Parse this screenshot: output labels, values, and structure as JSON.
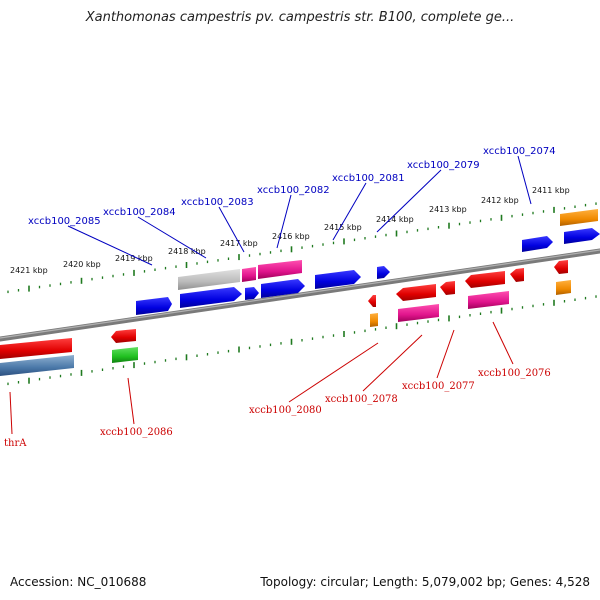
{
  "title": "Xanthomonas campestris pv. campestris str. B100, complete ge...",
  "footer": {
    "accession": "Accession: NC_010688",
    "summary": "Topology: circular; Length: 5,079,002 bp; Genes: 4,528"
  },
  "colors": {
    "forward_label": "#0000c0",
    "reverse_label": "#cc0000",
    "tick": "#1f7a1f",
    "backbone": "#888888"
  },
  "scale_labels": [
    "2421 kbp",
    "2420 kbp",
    "2419 kbp",
    "2418 kbp",
    "2417 kbp",
    "2416 kbp",
    "2415 kbp",
    "2414 kbp",
    "2413 kbp",
    "2412 kbp",
    "2411 kbp"
  ],
  "forward_gene_labels": [
    "xccb100_2085",
    "xccb100_2084",
    "xccb100_2083",
    "xccb100_2082",
    "xccb100_2081",
    "xccb100_2079",
    "xccb100_2074"
  ],
  "reverse_gene_labels": [
    "thrA",
    "xccb100_2086",
    "xccb100_2080",
    "xccb100_2078",
    "xccb100_2077",
    "xccb100_2076"
  ]
}
